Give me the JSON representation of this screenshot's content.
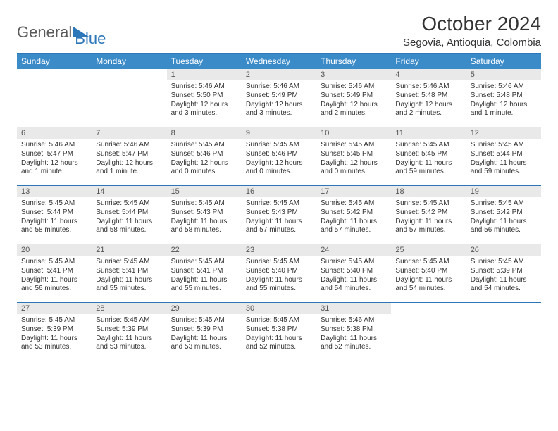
{
  "logo": {
    "text1": "General",
    "text2": "Blue"
  },
  "title": "October 2024",
  "location": "Segovia, Antioquia, Colombia",
  "days_of_week": [
    "Sunday",
    "Monday",
    "Tuesday",
    "Wednesday",
    "Thursday",
    "Friday",
    "Saturday"
  ],
  "calendar_style": {
    "header_bg": "#3b8bc9",
    "header_text": "#ffffff",
    "border_color": "#2c76ba",
    "daynum_bg": "#e9e9e9",
    "body_text": "#333333",
    "title_fontsize": 28,
    "location_fontsize": 15,
    "dow_fontsize": 12,
    "cell_fontsize": 10
  },
  "weeks": [
    [
      {
        "n": "",
        "sr": "",
        "ss": "",
        "dl": ""
      },
      {
        "n": "",
        "sr": "",
        "ss": "",
        "dl": ""
      },
      {
        "n": "1",
        "sr": "Sunrise: 5:46 AM",
        "ss": "Sunset: 5:50 PM",
        "dl": "Daylight: 12 hours and 3 minutes."
      },
      {
        "n": "2",
        "sr": "Sunrise: 5:46 AM",
        "ss": "Sunset: 5:49 PM",
        "dl": "Daylight: 12 hours and 3 minutes."
      },
      {
        "n": "3",
        "sr": "Sunrise: 5:46 AM",
        "ss": "Sunset: 5:49 PM",
        "dl": "Daylight: 12 hours and 2 minutes."
      },
      {
        "n": "4",
        "sr": "Sunrise: 5:46 AM",
        "ss": "Sunset: 5:48 PM",
        "dl": "Daylight: 12 hours and 2 minutes."
      },
      {
        "n": "5",
        "sr": "Sunrise: 5:46 AM",
        "ss": "Sunset: 5:48 PM",
        "dl": "Daylight: 12 hours and 1 minute."
      }
    ],
    [
      {
        "n": "6",
        "sr": "Sunrise: 5:46 AM",
        "ss": "Sunset: 5:47 PM",
        "dl": "Daylight: 12 hours and 1 minute."
      },
      {
        "n": "7",
        "sr": "Sunrise: 5:46 AM",
        "ss": "Sunset: 5:47 PM",
        "dl": "Daylight: 12 hours and 1 minute."
      },
      {
        "n": "8",
        "sr": "Sunrise: 5:45 AM",
        "ss": "Sunset: 5:46 PM",
        "dl": "Daylight: 12 hours and 0 minutes."
      },
      {
        "n": "9",
        "sr": "Sunrise: 5:45 AM",
        "ss": "Sunset: 5:46 PM",
        "dl": "Daylight: 12 hours and 0 minutes."
      },
      {
        "n": "10",
        "sr": "Sunrise: 5:45 AM",
        "ss": "Sunset: 5:45 PM",
        "dl": "Daylight: 12 hours and 0 minutes."
      },
      {
        "n": "11",
        "sr": "Sunrise: 5:45 AM",
        "ss": "Sunset: 5:45 PM",
        "dl": "Daylight: 11 hours and 59 minutes."
      },
      {
        "n": "12",
        "sr": "Sunrise: 5:45 AM",
        "ss": "Sunset: 5:44 PM",
        "dl": "Daylight: 11 hours and 59 minutes."
      }
    ],
    [
      {
        "n": "13",
        "sr": "Sunrise: 5:45 AM",
        "ss": "Sunset: 5:44 PM",
        "dl": "Daylight: 11 hours and 58 minutes."
      },
      {
        "n": "14",
        "sr": "Sunrise: 5:45 AM",
        "ss": "Sunset: 5:44 PM",
        "dl": "Daylight: 11 hours and 58 minutes."
      },
      {
        "n": "15",
        "sr": "Sunrise: 5:45 AM",
        "ss": "Sunset: 5:43 PM",
        "dl": "Daylight: 11 hours and 58 minutes."
      },
      {
        "n": "16",
        "sr": "Sunrise: 5:45 AM",
        "ss": "Sunset: 5:43 PM",
        "dl": "Daylight: 11 hours and 57 minutes."
      },
      {
        "n": "17",
        "sr": "Sunrise: 5:45 AM",
        "ss": "Sunset: 5:42 PM",
        "dl": "Daylight: 11 hours and 57 minutes."
      },
      {
        "n": "18",
        "sr": "Sunrise: 5:45 AM",
        "ss": "Sunset: 5:42 PM",
        "dl": "Daylight: 11 hours and 57 minutes."
      },
      {
        "n": "19",
        "sr": "Sunrise: 5:45 AM",
        "ss": "Sunset: 5:42 PM",
        "dl": "Daylight: 11 hours and 56 minutes."
      }
    ],
    [
      {
        "n": "20",
        "sr": "Sunrise: 5:45 AM",
        "ss": "Sunset: 5:41 PM",
        "dl": "Daylight: 11 hours and 56 minutes."
      },
      {
        "n": "21",
        "sr": "Sunrise: 5:45 AM",
        "ss": "Sunset: 5:41 PM",
        "dl": "Daylight: 11 hours and 55 minutes."
      },
      {
        "n": "22",
        "sr": "Sunrise: 5:45 AM",
        "ss": "Sunset: 5:41 PM",
        "dl": "Daylight: 11 hours and 55 minutes."
      },
      {
        "n": "23",
        "sr": "Sunrise: 5:45 AM",
        "ss": "Sunset: 5:40 PM",
        "dl": "Daylight: 11 hours and 55 minutes."
      },
      {
        "n": "24",
        "sr": "Sunrise: 5:45 AM",
        "ss": "Sunset: 5:40 PM",
        "dl": "Daylight: 11 hours and 54 minutes."
      },
      {
        "n": "25",
        "sr": "Sunrise: 5:45 AM",
        "ss": "Sunset: 5:40 PM",
        "dl": "Daylight: 11 hours and 54 minutes."
      },
      {
        "n": "26",
        "sr": "Sunrise: 5:45 AM",
        "ss": "Sunset: 5:39 PM",
        "dl": "Daylight: 11 hours and 54 minutes."
      }
    ],
    [
      {
        "n": "27",
        "sr": "Sunrise: 5:45 AM",
        "ss": "Sunset: 5:39 PM",
        "dl": "Daylight: 11 hours and 53 minutes."
      },
      {
        "n": "28",
        "sr": "Sunrise: 5:45 AM",
        "ss": "Sunset: 5:39 PM",
        "dl": "Daylight: 11 hours and 53 minutes."
      },
      {
        "n": "29",
        "sr": "Sunrise: 5:45 AM",
        "ss": "Sunset: 5:39 PM",
        "dl": "Daylight: 11 hours and 53 minutes."
      },
      {
        "n": "30",
        "sr": "Sunrise: 5:45 AM",
        "ss": "Sunset: 5:38 PM",
        "dl": "Daylight: 11 hours and 52 minutes."
      },
      {
        "n": "31",
        "sr": "Sunrise: 5:46 AM",
        "ss": "Sunset: 5:38 PM",
        "dl": "Daylight: 11 hours and 52 minutes."
      },
      {
        "n": "",
        "sr": "",
        "ss": "",
        "dl": ""
      },
      {
        "n": "",
        "sr": "",
        "ss": "",
        "dl": ""
      }
    ]
  ]
}
